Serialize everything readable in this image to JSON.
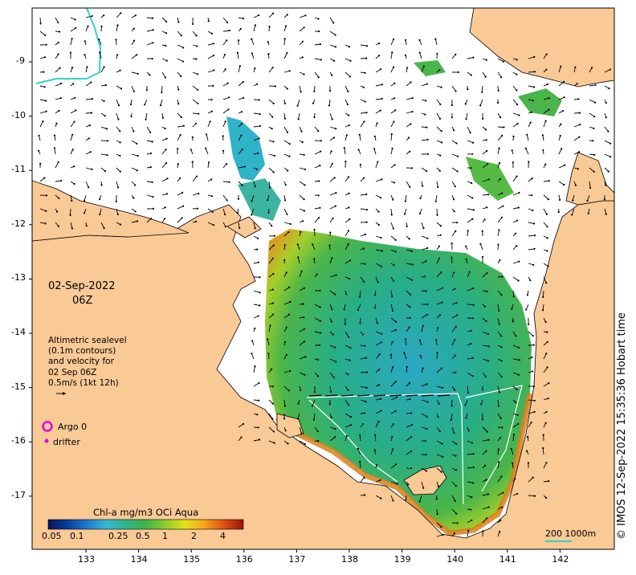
{
  "map": {
    "date_line": "02-Sep-2022",
    "time_line": "06Z",
    "description_lines": [
      "Altimetric sealevel",
      "(0.1m contours)",
      "and velocity for",
      "02 Sep 06Z",
      "0.5m/s (1kt 12h)"
    ],
    "legend": {
      "argo_label": "Argo 0",
      "drifter_label": "drifter"
    },
    "credit": "© IMOS 12-Sep-2022 15:35:36 Hobart time",
    "scale_label": "200  1000m",
    "colors": {
      "land": "#f9c996",
      "ocean_background": "#ffffff",
      "argo_marker": "#e300e3",
      "bathymetry_200m": "#2fd2c8",
      "velocity_arrows": "#000000"
    }
  },
  "axes": {
    "x_ticks": [
      "133",
      "134",
      "135",
      "136",
      "137",
      "138",
      "139",
      "140",
      "141",
      "142"
    ],
    "y_ticks": [
      "-9",
      "-10",
      "-11",
      "-12",
      "-13",
      "-14",
      "-15",
      "-16",
      "-17"
    ]
  },
  "colorbar": {
    "title": "Chl-a mg/m3 OCi Aqua",
    "tick_labels": [
      "0.05",
      "0.1",
      "0.25",
      "0.5",
      "1",
      "2",
      "4"
    ],
    "colormap": [
      "#08145a",
      "#0a3fa0",
      "#1d7bd0",
      "#37b8d6",
      "#2cb38a",
      "#3db548",
      "#8ccc2c",
      "#e6e21c",
      "#f5a418",
      "#de5012",
      "#9b1206"
    ]
  }
}
